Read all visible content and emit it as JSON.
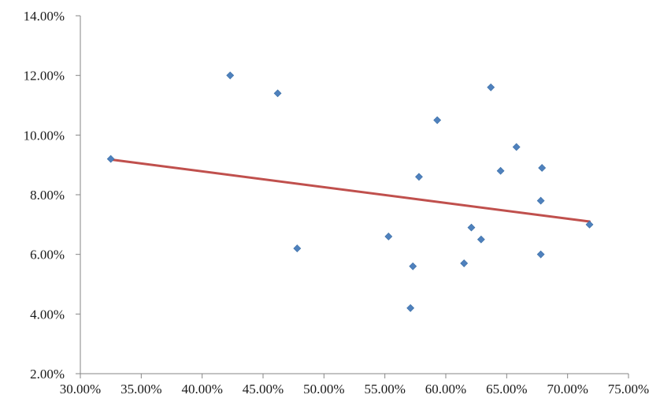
{
  "chart_data": {
    "type": "scatter",
    "title": "",
    "xlabel": "",
    "ylabel": "",
    "xlim": [
      0.3,
      0.75
    ],
    "ylim": [
      0.02,
      0.14
    ],
    "x_ticks": [
      {
        "value": 0.3,
        "label": "30.00%"
      },
      {
        "value": 0.35,
        "label": "35.00%"
      },
      {
        "value": 0.4,
        "label": "40.00%"
      },
      {
        "value": 0.45,
        "label": "45.00%"
      },
      {
        "value": 0.5,
        "label": "50.00%"
      },
      {
        "value": 0.55,
        "label": "55.00%"
      },
      {
        "value": 0.6,
        "label": "60.00%"
      },
      {
        "value": 0.65,
        "label": "65.00%"
      },
      {
        "value": 0.7,
        "label": "70.00%"
      },
      {
        "value": 0.75,
        "label": "75.00%"
      }
    ],
    "y_ticks": [
      {
        "value": 0.02,
        "label": "2.00%"
      },
      {
        "value": 0.04,
        "label": "4.00%"
      },
      {
        "value": 0.06,
        "label": "6.00%"
      },
      {
        "value": 0.08,
        "label": "8.00%"
      },
      {
        "value": 0.1,
        "label": "10.00%"
      },
      {
        "value": 0.12,
        "label": "12.00%"
      },
      {
        "value": 0.14,
        "label": "14.00%"
      }
    ],
    "grid": false,
    "legend": "none",
    "series": [
      {
        "marker": "diamond",
        "color": "#4f81bd",
        "points": [
          [
            0.325,
            0.092
          ],
          [
            0.423,
            0.12
          ],
          [
            0.462,
            0.114
          ],
          [
            0.478,
            0.062
          ],
          [
            0.553,
            0.066
          ],
          [
            0.571,
            0.042
          ],
          [
            0.573,
            0.056
          ],
          [
            0.578,
            0.086
          ],
          [
            0.593,
            0.105
          ],
          [
            0.615,
            0.057
          ],
          [
            0.621,
            0.069
          ],
          [
            0.629,
            0.065
          ],
          [
            0.637,
            0.116
          ],
          [
            0.645,
            0.088
          ],
          [
            0.658,
            0.096
          ],
          [
            0.678,
            0.06
          ],
          [
            0.678,
            0.078
          ],
          [
            0.679,
            0.089
          ],
          [
            0.718,
            0.07
          ]
        ]
      }
    ],
    "trendline": {
      "type": "linear",
      "color": "#c0504d",
      "start": [
        0.325,
        0.0918
      ],
      "end": [
        0.718,
        0.071
      ]
    }
  }
}
